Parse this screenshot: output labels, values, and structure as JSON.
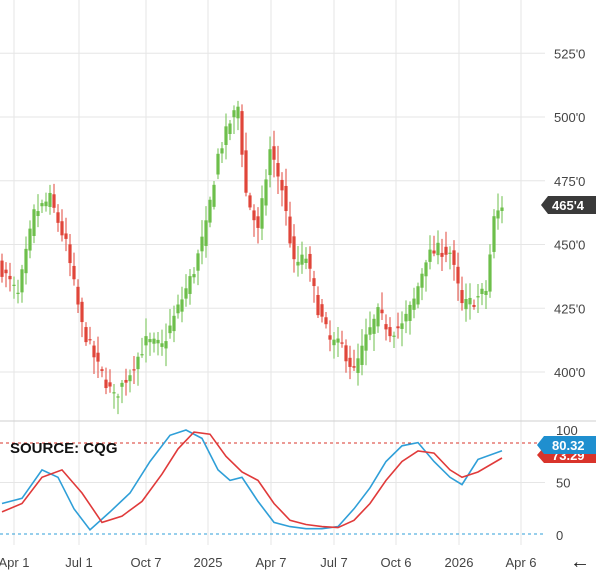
{
  "source_label": "SOURCE: CQG",
  "back_arrow_glyph": "←",
  "chart_data": {
    "type": "candlestick",
    "title": "",
    "colors": {
      "up": "#6dbf4b",
      "down": "#e0453a",
      "grid": "#e6e6e6",
      "stoch_k": "#2f9fd8",
      "stoch_d": "#e03a3a",
      "price_tag": "#3a3a3a",
      "k_tag": "#1f8fcf",
      "d_tag": "#d9342b"
    },
    "x_ticks": [
      "Apr 1",
      "Jul 1",
      "Oct 7",
      "2025",
      "Apr 7",
      "Jul 7",
      "Oct 6",
      "2026",
      "Apr 6"
    ],
    "price_panel": {
      "ylim": [
        385,
        540
      ],
      "y_ticks": [
        "525'0",
        "500'0",
        "475'0",
        "450'0",
        "425'0",
        "400'0"
      ],
      "y_tick_values": [
        525,
        500,
        475,
        450,
        425,
        400
      ],
      "last_price_label": "465'4",
      "last_price": 465.5,
      "anchors": [
        {
          "i": 0,
          "p": 440
        },
        {
          "i": 4,
          "p": 430
        },
        {
          "i": 8,
          "p": 462
        },
        {
          "i": 12,
          "p": 468
        },
        {
          "i": 16,
          "p": 450
        },
        {
          "i": 20,
          "p": 418
        },
        {
          "i": 24,
          "p": 402
        },
        {
          "i": 28,
          "p": 390
        },
        {
          "i": 32,
          "p": 400
        },
        {
          "i": 36,
          "p": 412
        },
        {
          "i": 40,
          "p": 410
        },
        {
          "i": 44,
          "p": 425
        },
        {
          "i": 48,
          "p": 440
        },
        {
          "i": 51,
          "p": 457
        },
        {
          "i": 54,
          "p": 485
        },
        {
          "i": 57,
          "p": 498
        },
        {
          "i": 59,
          "p": 504
        },
        {
          "i": 61,
          "p": 470
        },
        {
          "i": 64,
          "p": 455
        },
        {
          "i": 67,
          "p": 487
        },
        {
          "i": 70,
          "p": 472
        },
        {
          "i": 73,
          "p": 442
        },
        {
          "i": 76,
          "p": 445
        },
        {
          "i": 79,
          "p": 425
        },
        {
          "i": 82,
          "p": 412
        },
        {
          "i": 85,
          "p": 410
        },
        {
          "i": 88,
          "p": 400
        },
        {
          "i": 91,
          "p": 413
        },
        {
          "i": 94,
          "p": 423
        },
        {
          "i": 97,
          "p": 416
        },
        {
          "i": 100,
          "p": 418
        },
        {
          "i": 103,
          "p": 428
        },
        {
          "i": 106,
          "p": 445
        },
        {
          "i": 109,
          "p": 448
        },
        {
          "i": 112,
          "p": 447
        },
        {
          "i": 115,
          "p": 426
        },
        {
          "i": 118,
          "p": 428
        },
        {
          "i": 121,
          "p": 432
        },
        {
          "i": 123,
          "p": 460
        },
        {
          "i": 125,
          "p": 465.5
        }
      ]
    },
    "stoch_panel": {
      "ylim": [
        0,
        100
      ],
      "y_ticks": [
        "100",
        "50",
        "0"
      ],
      "y_tick_values": [
        100,
        50,
        0
      ],
      "overbought": 80,
      "oversold": 20,
      "k_label": "80.32",
      "k_value": 80.32,
      "d_label": "73.29",
      "d_value": 73.29,
      "k_points": [
        [
          0,
          30
        ],
        [
          5,
          35
        ],
        [
          10,
          62
        ],
        [
          14,
          55
        ],
        [
          18,
          25
        ],
        [
          22,
          5
        ],
        [
          27,
          22
        ],
        [
          32,
          40
        ],
        [
          37,
          70
        ],
        [
          42,
          95
        ],
        [
          46,
          100
        ],
        [
          50,
          92
        ],
        [
          54,
          62
        ],
        [
          57,
          52
        ],
        [
          60,
          55
        ],
        [
          64,
          32
        ],
        [
          68,
          12
        ],
        [
          72,
          8
        ],
        [
          76,
          6
        ],
        [
          80,
          6
        ],
        [
          84,
          8
        ],
        [
          88,
          25
        ],
        [
          92,
          45
        ],
        [
          96,
          70
        ],
        [
          100,
          85
        ],
        [
          104,
          88
        ],
        [
          108,
          70
        ],
        [
          112,
          55
        ],
        [
          115,
          48
        ],
        [
          119,
          72
        ],
        [
          125,
          80.32
        ]
      ],
      "d_points": [
        [
          0,
          22
        ],
        [
          5,
          30
        ],
        [
          10,
          55
        ],
        [
          15,
          62
        ],
        [
          20,
          40
        ],
        [
          25,
          12
        ],
        [
          30,
          18
        ],
        [
          35,
          32
        ],
        [
          40,
          58
        ],
        [
          44,
          82
        ],
        [
          48,
          98
        ],
        [
          52,
          96
        ],
        [
          56,
          75
        ],
        [
          60,
          60
        ],
        [
          64,
          52
        ],
        [
          68,
          30
        ],
        [
          72,
          14
        ],
        [
          76,
          10
        ],
        [
          80,
          8
        ],
        [
          84,
          7
        ],
        [
          88,
          14
        ],
        [
          92,
          30
        ],
        [
          96,
          52
        ],
        [
          100,
          70
        ],
        [
          104,
          80
        ],
        [
          108,
          78
        ],
        [
          112,
          62
        ],
        [
          115,
          55
        ],
        [
          119,
          60
        ],
        [
          125,
          73.29
        ]
      ]
    }
  }
}
